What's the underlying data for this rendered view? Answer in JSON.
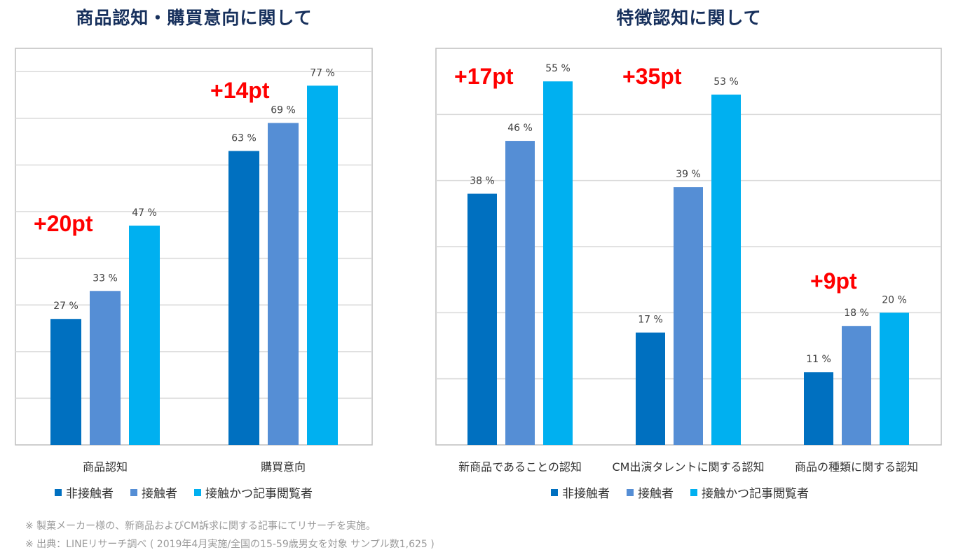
{
  "chart_data": [
    {
      "type": "bar",
      "title": "商品認知・購買意向に関して",
      "categories": [
        "商品認知",
        "購買意向"
      ],
      "series": [
        {
          "name": "非接触者",
          "values": [
            27,
            63
          ]
        },
        {
          "name": "接触者",
          "values": [
            33,
            69
          ]
        },
        {
          "name": "接触かつ記事閲覧者",
          "values": [
            47,
            77
          ]
        }
      ],
      "value_labels": [
        [
          "27 %",
          "63 %"
        ],
        [
          "33 %",
          "69 %"
        ],
        [
          "47 %",
          "77 %"
        ]
      ],
      "annotations": [
        "+20pt",
        "+14pt"
      ],
      "ylim": [
        0,
        85
      ],
      "grid": true,
      "legend_position": "bottom"
    },
    {
      "type": "bar",
      "title": "特徴認知に関して",
      "categories": [
        "新商品であることの認知",
        "CM出演タレントに関する認知",
        "商品の種類に関する認知"
      ],
      "series": [
        {
          "name": "非接触者",
          "values": [
            38,
            17,
            11
          ]
        },
        {
          "name": "接触者",
          "values": [
            46,
            39,
            18
          ]
        },
        {
          "name": "接触かつ記事閲覧者",
          "values": [
            55,
            53,
            20
          ]
        }
      ],
      "value_labels": [
        [
          "38 %",
          "17 %",
          "11 %"
        ],
        [
          "46 %",
          "39 %",
          "18 %"
        ],
        [
          "55 %",
          "53 %",
          "20 %"
        ]
      ],
      "annotations": [
        "+17pt",
        "+35pt",
        "+9pt"
      ],
      "ylim": [
        0,
        60
      ],
      "grid": true,
      "legend_position": "bottom"
    }
  ],
  "colors": {
    "series": [
      "#0070c0",
      "#558ed5",
      "#00b0f0"
    ],
    "annotation": "#ff0000",
    "title": "#17305c",
    "grid": "#d9d9d9",
    "frame": "#bfbfbf"
  },
  "notes": [
    "※ 製菓メーカー様の、新商品およびCM訴求に関する記事にてリサーチを実施。",
    "※ 出典：LINEリサーチ調べ ( 2019年4月実施/全国の15-59歳男女を対象 サンプル数1,625 )"
  ]
}
